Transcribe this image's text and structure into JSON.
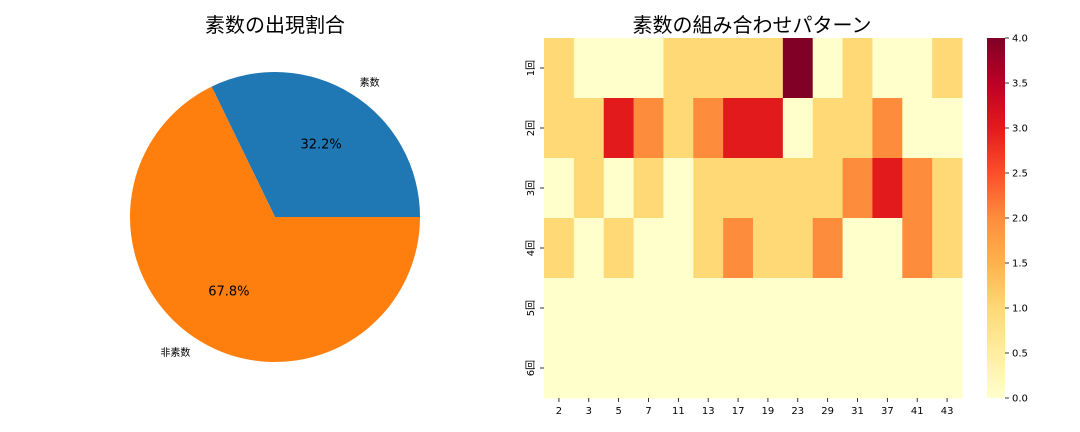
{
  "chart_data": [
    {
      "type": "pie",
      "title": "素数の出現割合",
      "labels": [
        "素数",
        "非素数"
      ],
      "values": [
        32.2,
        67.8
      ],
      "percent_labels": [
        "32.2%",
        "67.8%"
      ],
      "colors": [
        "#1f77b4",
        "#ff7f0e"
      ],
      "start_angle": 0,
      "direction": "counterclockwise"
    },
    {
      "type": "heatmap",
      "title": "素数の組み合わせパターン",
      "x_categories": [
        "2",
        "3",
        "5",
        "7",
        "11",
        "13",
        "17",
        "19",
        "23",
        "29",
        "31",
        "37",
        "41",
        "43"
      ],
      "y_categories": [
        "1回",
        "2回",
        "3回",
        "4回",
        "5回",
        "6回"
      ],
      "values": [
        [
          1,
          0,
          0,
          0,
          1,
          1,
          1,
          1,
          4,
          0,
          1,
          0,
          0,
          1
        ],
        [
          1,
          1,
          3,
          2,
          1,
          2,
          3,
          3,
          0,
          1,
          1,
          2,
          0,
          0
        ],
        [
          0,
          1,
          0,
          1,
          0,
          1,
          1,
          1,
          1,
          1,
          2,
          3,
          2,
          1
        ],
        [
          1,
          0,
          1,
          0,
          0,
          1,
          2,
          1,
          1,
          2,
          0,
          0,
          2,
          1
        ],
        [
          0,
          0,
          0,
          0,
          0,
          0,
          0,
          0,
          0,
          0,
          0,
          0,
          0,
          0
        ],
        [
          0,
          0,
          0,
          0,
          0,
          0,
          0,
          0,
          0,
          0,
          0,
          0,
          0,
          0
        ]
      ],
      "colorbar_range": [
        0,
        4
      ],
      "colorbar_ticks": [
        "0.0",
        "0.5",
        "1.0",
        "1.5",
        "2.0",
        "2.5",
        "3.0",
        "3.5",
        "4.0"
      ],
      "colormap": "YlOrRd",
      "colormap_stops": [
        "#ffffcc",
        "#ffeda0",
        "#fed976",
        "#feb24c",
        "#fd8d3c",
        "#fc4e2a",
        "#e31a1c",
        "#bd0026",
        "#800026"
      ]
    }
  ]
}
